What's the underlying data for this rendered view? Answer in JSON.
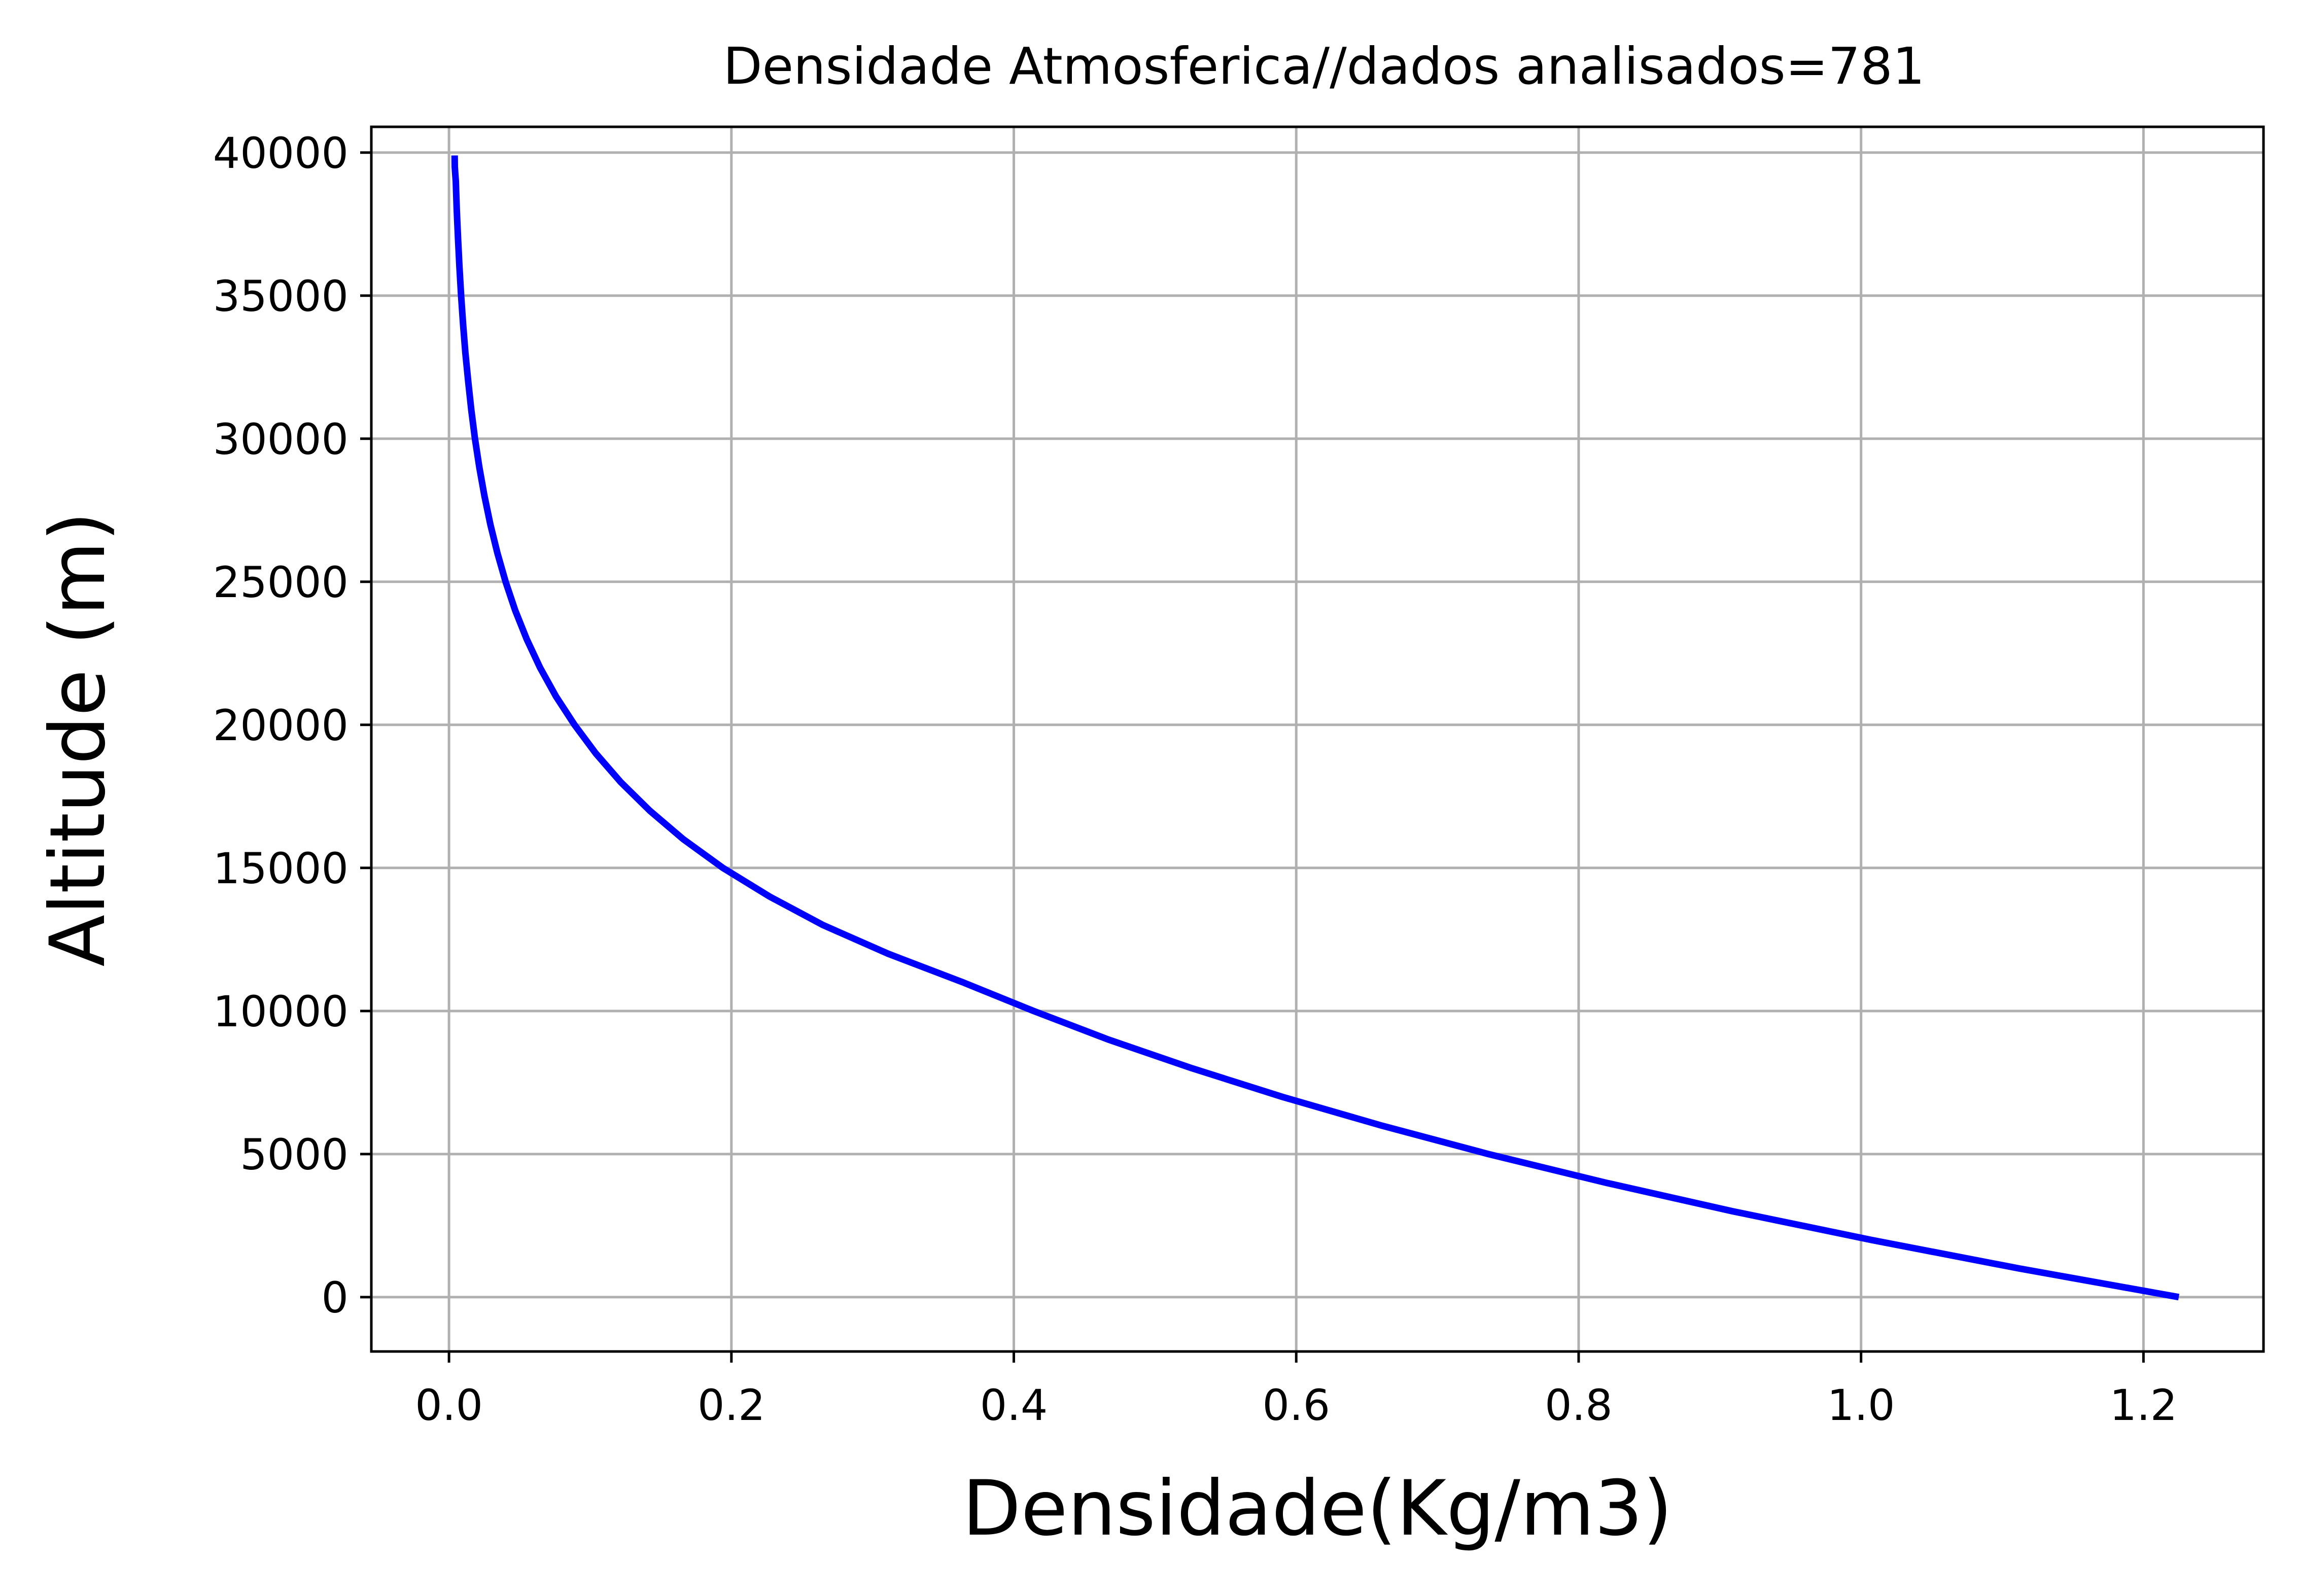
{
  "chart_data": {
    "type": "line",
    "title": "Densidade Atmosferica//dados analisados=781",
    "xlabel": "Densidade(Kg/m3)",
    "ylabel": "Altitude (m)",
    "xlim": [
      -0.055,
      1.285
    ],
    "ylim": [
      -1900,
      40900
    ],
    "xticks": [
      0.0,
      0.2,
      0.4,
      0.6,
      0.8,
      1.0,
      1.2
    ],
    "xtick_labels": [
      "0.0",
      "0.2",
      "0.4",
      "0.6",
      "0.8",
      "1.0",
      "1.2"
    ],
    "yticks": [
      0,
      5000,
      10000,
      15000,
      20000,
      25000,
      30000,
      35000,
      40000
    ],
    "ytick_labels": [
      "0",
      "5000",
      "10000",
      "15000",
      "20000",
      "25000",
      "30000",
      "35000",
      "40000"
    ],
    "grid": true,
    "series": [
      {
        "color": "#0000ff",
        "x": [
          1.225,
          1.112,
          1.007,
          0.909,
          0.819,
          0.736,
          0.66,
          0.59,
          0.526,
          0.467,
          0.414,
          0.364,
          0.311,
          0.265,
          0.227,
          0.194,
          0.166,
          0.1422,
          0.1216,
          0.104,
          0.0889,
          0.0757,
          0.0645,
          0.055,
          0.0469,
          0.0401,
          0.0343,
          0.0293,
          0.0251,
          0.0215,
          0.0184,
          0.0158,
          0.0136,
          0.0116,
          0.01,
          0.0086,
          0.0074,
          0.0064,
          0.0055,
          0.0048,
          0.0041,
          0.004
        ],
        "y": [
          0,
          1000,
          2000,
          3000,
          4000,
          5000,
          6000,
          7000,
          8000,
          9000,
          10000,
          11000,
          12000,
          13000,
          14000,
          15000,
          16000,
          17000,
          18000,
          19000,
          20000,
          21000,
          22000,
          23000,
          24000,
          25000,
          26000,
          27000,
          28000,
          29000,
          30000,
          31000,
          32000,
          33000,
          34000,
          35000,
          36000,
          37000,
          38000,
          39000,
          39500,
          39900
        ]
      }
    ]
  }
}
